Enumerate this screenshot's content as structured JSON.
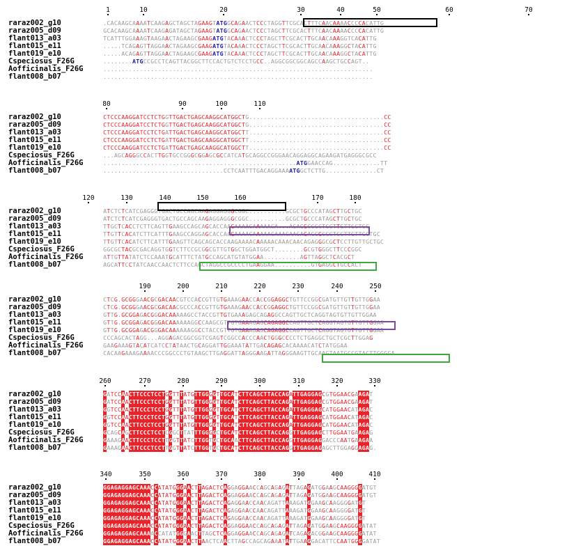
{
  "sequence_names": [
    "raraz002_g10",
    "raraz005_d09",
    "flant013_a03",
    "flant015_e11",
    "flant019_e10",
    "Cspeciosus_F26G",
    "Aofficinalis_F26G",
    "flant008_b07"
  ],
  "colors": {
    "conserved_bg": "#e8232a",
    "similar_text": "#e8232a",
    "start_codon": "#1a1aa6",
    "box_black": "#000000",
    "box_purple": "#7a4b9c",
    "box_green": "#3ea83e",
    "column_frame": "#5a5ab0"
  },
  "blocks": [
    {
      "ruler_labels": [
        "1",
        "10",
        "20",
        "30",
        "40",
        "50",
        "60",
        "70"
      ],
      "rows": [
        ".CACAAGCAAAATCAAGAGCTAGCTAGAAGTATGGCAGAACTCCCTAGGTTCGCACTTTCAACAAAACCCCACATTG",
        "GCACAAGCAAAATCAAGAGATAGCTAGAAGTATGGCAGAACTCCCTAGCTTCGCACTTTCAACAAAACCCCACATTG",
        "TCATTTGGAAAGTAAGAACTAGAAGCGAAGATGTACAAACTCCCTAGCTTCGCACTTGCAACAAAGGTCACATTG",
        ".....TCAGAGTTAGGAACTAGAAGCGAAGATGTACAAACTCCCTAGCTTCGCACTTGCAACAAAGGCTACATTG",
        ".....ACAGAGTTAGGAACTAGAAGCGAAGATGTACAAACTCCCTAGCTTCGCACTTGCAACAAAGGCTACATTG",
        "........ATGCCGCCTCAGTTACGGCTTCCACTGTCTCCTGCC..AGGCGGCGGCAGCCAAGCTGCCAGT..",
        "..........................................................................",
        ".........................................................................."
      ]
    },
    {
      "ruler_labels": [
        "80",
        "90",
        "100",
        "110"
      ],
      "rows": [
        "CTCCCAAGGATCCTCTGGTTGACTGAGCAAGGCATGGCTG.....................................CC",
        "CTCCCAAGGATCCTCTGGTTGACTGAGCAAGGCATGGCTG.....................................CC",
        "CTCCCAAGGATCCTCTGATTGACTGAGCAAGGCATGGCTT.....................................CC",
        "CTCCCAAGGATCCTCTGATTGACTGAGCAAGGCATGGCTT.....................................CC",
        "CTCCCAAGGATCCTCTGATTGACTGAGCAAGGCATGGCTT.....................................CC",
        "...AGCAGGGCCACTTGGTGCCGGGCGGAGCGCCATCATGCAGGCCGGGAACAGGAGGCAGAAGATGAGGGCGCC",
        ".....................................................ATGGAACCAG.............TT",
        ".................................CCTCAATTTGACAGGAAAATGGCTCTTG..............CT"
      ]
    },
    {
      "ruler_labels": [
        "120",
        "130",
        "140",
        "150",
        "160",
        "170",
        "180"
      ],
      "rows": [
        "ATCTCTCATCGAGGGTGACTGCCAGCAAGAGGAGGGCGGC..........GCGCTGCCCATAGCTTGCTGC",
        "ATCTCTCATCGAGGGTGACTGCCAGCAAGAGGAGGGCGGC..........GCGCTGCCCATAGCTTGCTGC",
        "TTGCTCACCTCTTCAGTTGAAGCCAGCAGCACCAAGAAAACAAAAACA...AGAGGCCGCTCCTTGTTGCTGC",
        "TTGTTCACATCTTCATTTGAAGCCAGGAGCACCAAGAAAACAAAAACAAACAACAGAGGGCGCTCCTTGTTGCTGC",
        "TTGTTCACATCTTCATTTGAAGTTCAGCAGCACCAAGAAAACAAAAACAAACAACAGAGGGCGCTCCTTGTTGCTGC",
        "GGCGCTACGCGACAGGTGGTCTTCCGCGGCGTTGTGGCTGGATGGCT........GCGTGGGCTTCCCGGC",
        "ATTGTTATATCTCCAAATGCATTTCTATGCCAGCATGTATGGAA..........AGTTAGGCTCACGCT",
        "AGCATTCCTATCAACCAACTCTTCCAGCTAGGCCGCCCCTGAAGGAA..........GTGAGGCTGCCACT"
      ]
    },
    {
      "ruler_labels": [
        "190",
        "200",
        "210",
        "220",
        "230",
        "240",
        "250"
      ],
      "rows": [
        "CTCG.GCGGGAACGCGACAACGTCCACCGTTGTGAAAGAACCACCGGAGGCTGTTCCGGCGATGTTGTTGTTGGAA",
        "CTCG.GCGGGAACGCGACAACGCCCACCGTTGTGAAAGAACCACCGGAGGCTGTTCCGGCGATGTTGTTGTTGGAA",
        "GTTG.GCGGAGACGGGACAAAAAGCCTACCGTTGTGAAAGAGCAGAGGCCAGTTGCTCAGGTAGTGTTGTTGGAA",
        "GTTG.GCGGAGACGGGACAAAAAAGGCCAAGCGTTGTGAAAGAGCAGAGGCCAGTTGCTCAGGTAGTGTTGTTGGAA",
        "GTTG.GCGGAGACGGGACAAAAAAGGCCTACCGTTGTGAAAGAGCAGAGGCCAGTTGCTCAGGTAGTGTTGTTGGAA",
        "CCCAGCACTAGG...AGGAGACGGCGGTCGAGTCGGCCACCCAACTGGGCCCCTCTGAGGCTGCTCGCTTGGAG",
        "GAAGAAAGTACATCATCCTATAACTGCAGGATTGGAAATATTGACAGAGCACAAAACATCTATGGAA",
        "CACAAGAAAGAAAACCCGGCCCTGTAAGCTTGAGGATTAGGGAAGATTAGGGAAGTTGCAAGTAATGCCGTACTTGGGGA"
      ]
    },
    {
      "ruler_labels": [
        "260",
        "270",
        "280",
        "290",
        "300",
        "310",
        "320",
        "330"
      ],
      "rows": [
        "GATCCAACTTCCCTCCTGGTTTATGTTGGGGTTGCATCTTCAGCTTACCAGATTGAGGAGCGTGGAACGAAGAT",
        "GATCCAACTTCCCTCCTGGTTTATGTTGGGGTTGCATCTTCAGCTTACCAGATTGAGGAGCGTGGAACGAAGAT",
        "GGTCCAACTTCCCTCCTGGTTTATGTTGGGGTTGCATCTTCAGCTTACCAGATTGAGGAGCATGGAACATAGAC",
        "GGTCCAACTTCCCTCCTGGTTTATGTTGGGGTTGCATCTTCAGCTTACCAGATTGAGGAGCATGGAACATAGAC",
        "GGTCCAACTTCCCTCCTGGTTTATGTTGGGGTTGCATCTTCAGCTTACCAGATTGAGGAGCATGGAACATAGAC",
        "GCAGCAGCTTCCCTCCTCGGCTTATTTGGGGCTGCATCTTCAGCTTACCAGGTTGAGGAGCTTGGAATGAAGAG",
        "GAAAGAACTTCCCTCCTTGGTTATCTTGGTGCTGCAACTTCAGCTTACCAGGTTGAGGAGGACCCAATGAAGAA",
        "GAAAGAACTTCCCTCCTTGGTTATCTTGGTGCTGCATCTTCAGCTTACCAGGTTGAGGAGAGCTTGGAGGAGAG."
      ]
    },
    {
      "ruler_labels": [
        "340",
        "350",
        "360",
        "370",
        "380",
        "390",
        "400",
        "410"
      ],
      "rows": [
        "GGAGAGGAGCAAACCATATGGGAACTTAGACTCAGGAGGAACCAGCAGAGATTAGAGATGGAAGCAAGGGGATGT",
        "GGAGAGGAGCAAACCATATGGGAACTTAGACTCAGGAGGAACCAGCAGAGATTAGAGATGGAAGCAAGGGGATGT",
        "GGAGAGGAGCAAACCATATGGGAACTTAGACTCAGAGGAACCAACAGATTAAAGATGGAAGCAAGGGGATGT",
        "GGAGAGGAGCAAACCATATGGGAACTTAGACTCAGAGGAACCAACAGATTAAAGATGGAAGCAAGGGGATGT",
        "GGAGAGGAGCAAACCATATGGGAACTTAGACTCAGAGGAACCAACAGATTAAAGATGGAAGCAAGGGGATGT",
        "GGAGAGGAGCAAACCATATGGGAACTTAGACTCAGGAGGAACCAGCAGAGATTAGAGATGGAAGCAAGGGGATAT",
        "GGAGAGGAGCAAAACCATATGGGAACTTAGCTCAGGAGGAACCAGCAGAGATCAGAGACGGAAGCAAGGGGATAT",
        "GGAGAGGAGCAAACCATATGGGAACTTAACTCAACTTAGCCAGCAGAAATATTGAAGGACATTCCAATGGGGATAT"
      ]
    }
  ]
}
